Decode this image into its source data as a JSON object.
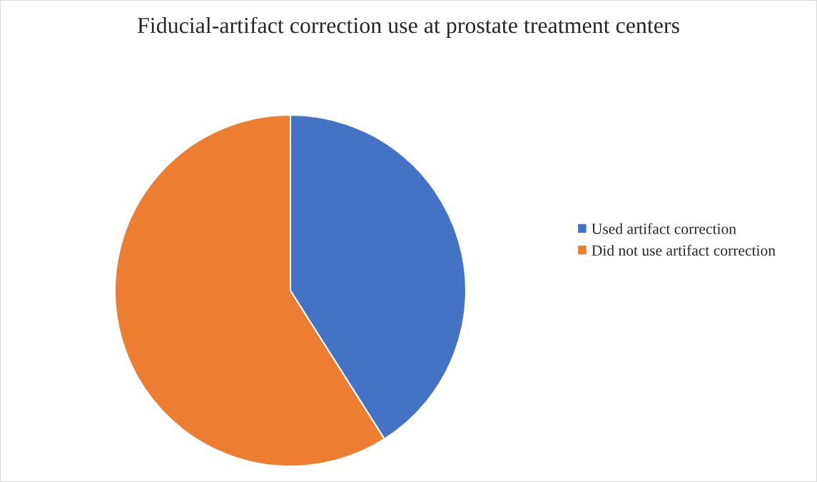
{
  "chart_data": {
    "type": "pie",
    "title": "Fiducial-artifact correction use at prostate treatment centers",
    "categories": [
      "Used artifact correction",
      "Did not use artifact correction"
    ],
    "values": [
      41,
      59
    ],
    "colors": [
      "#4472c4",
      "#ed7d31"
    ],
    "legend": "right"
  }
}
